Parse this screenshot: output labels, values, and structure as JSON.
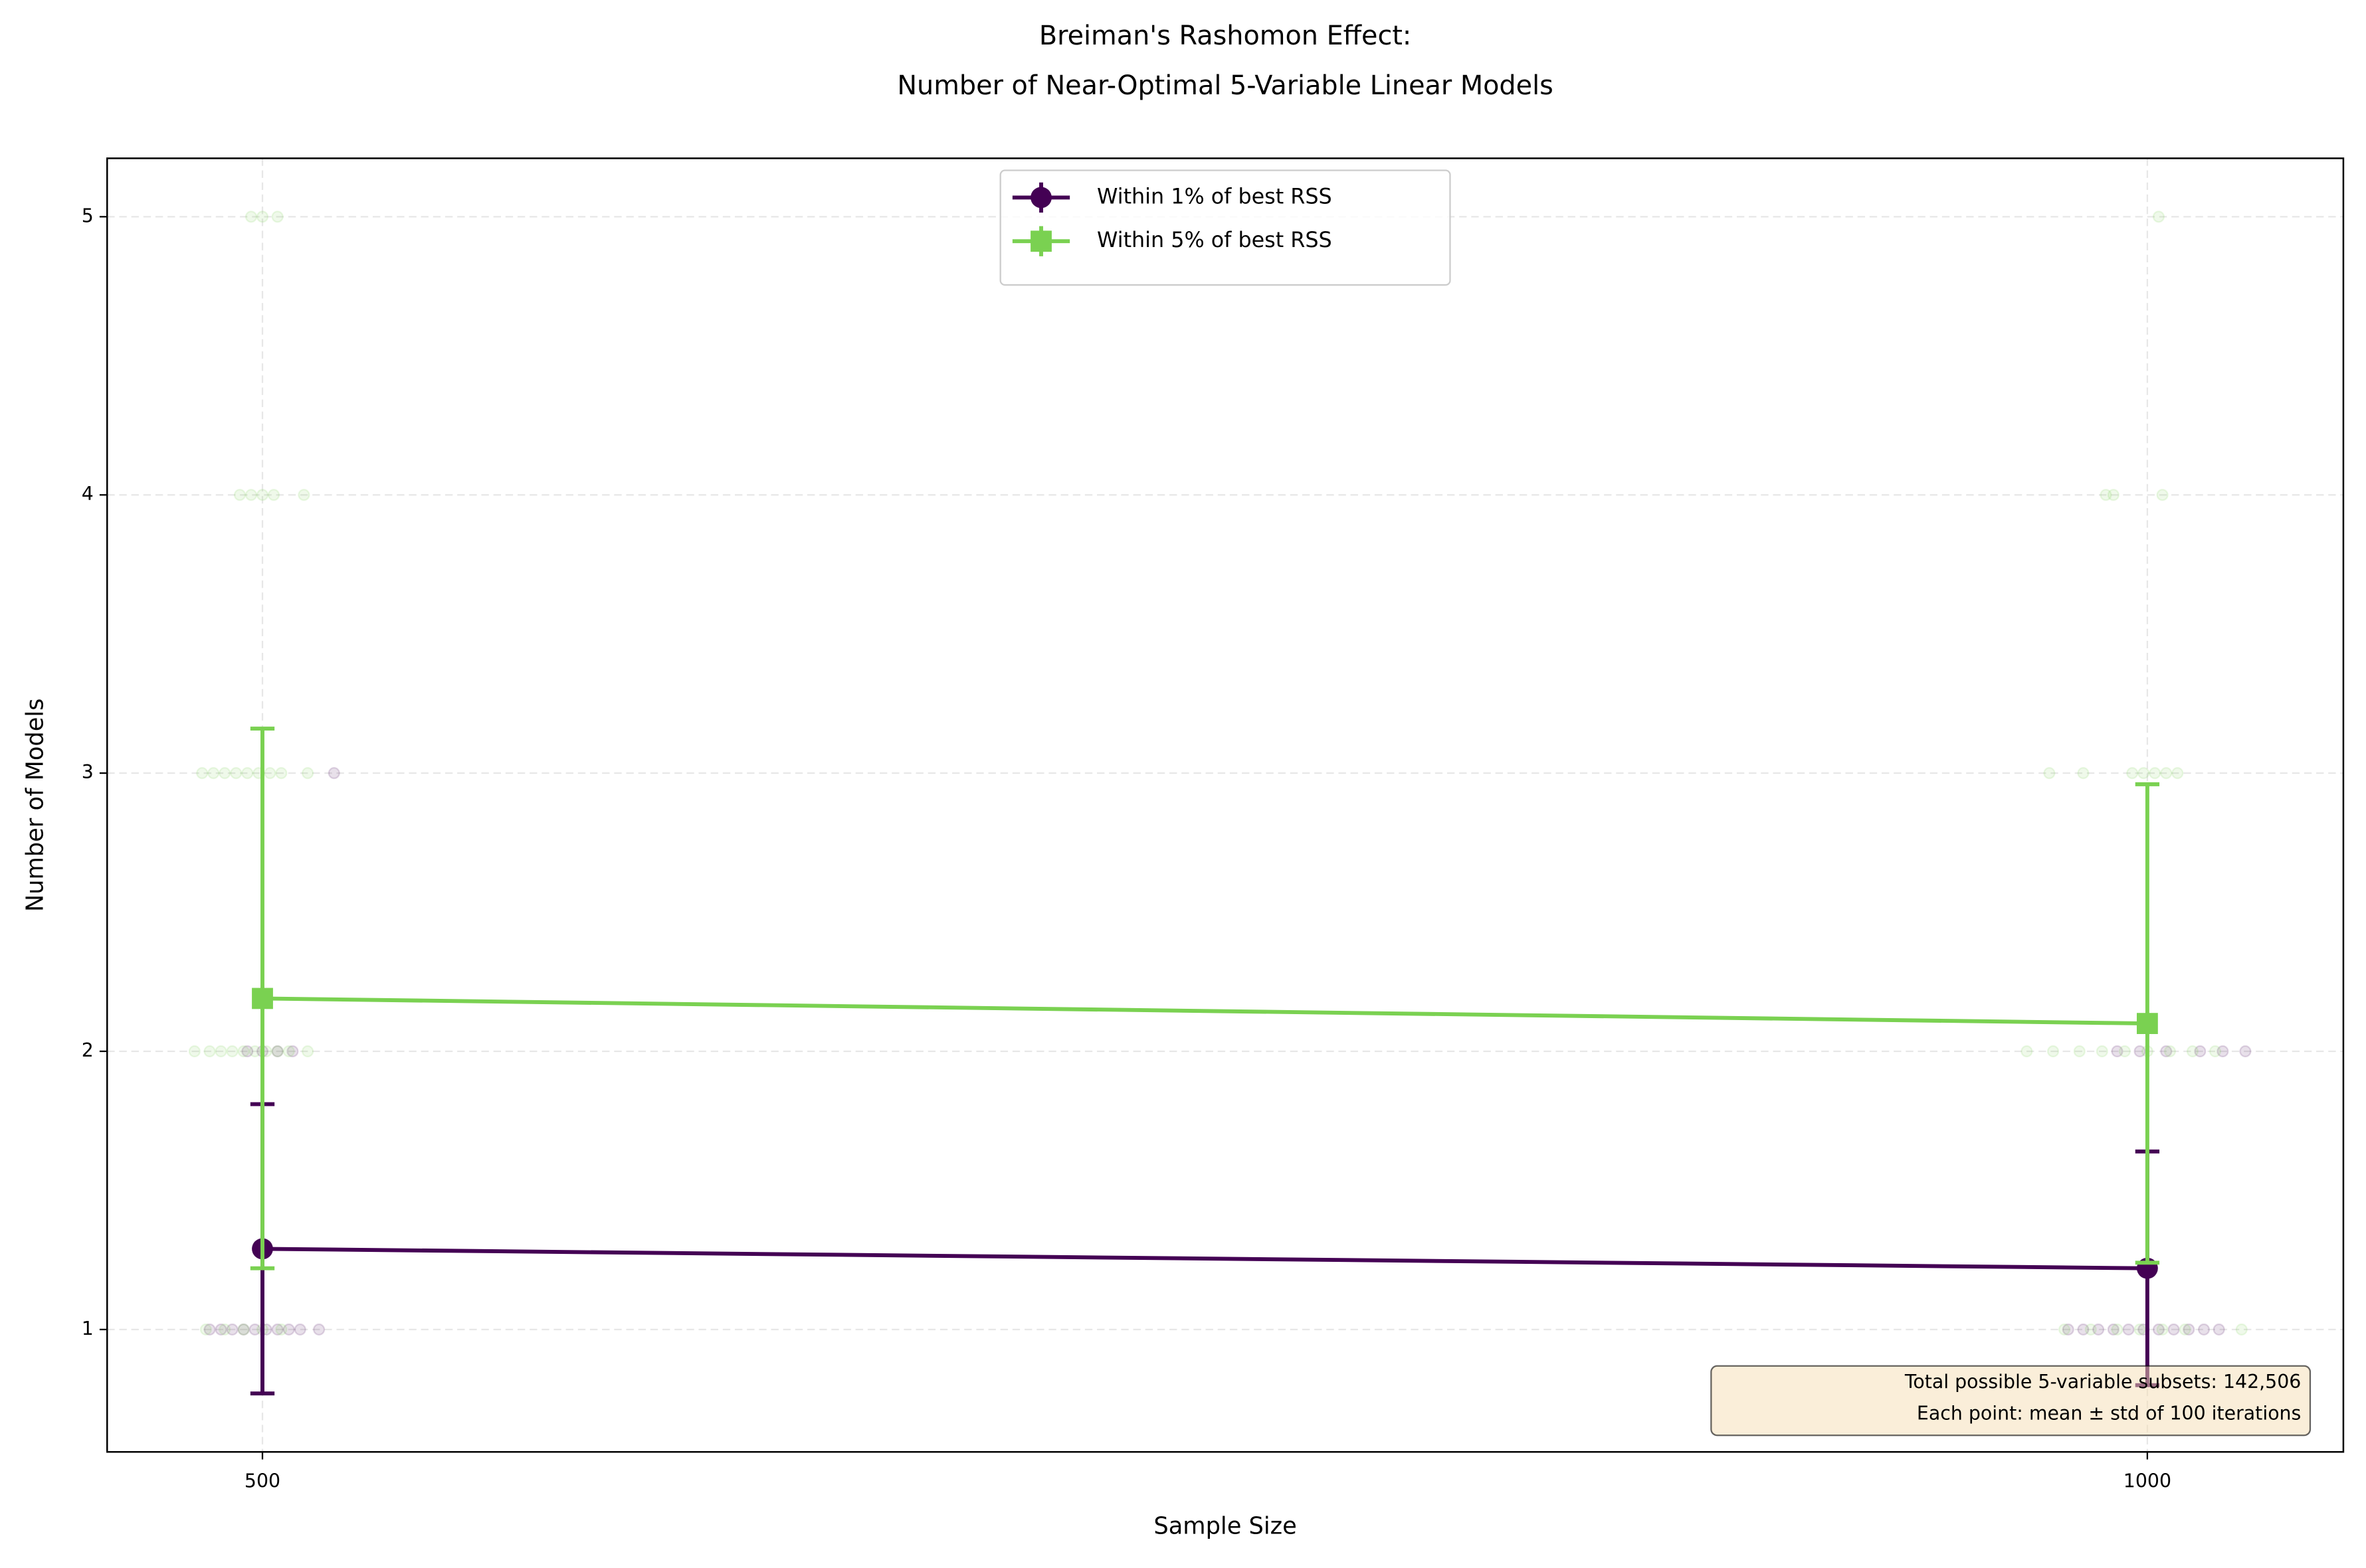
{
  "chart_data": {
    "type": "errorbar-line",
    "title": [
      "Breiman's Rashomon Effect:",
      "Number of Near-Optimal 5-Variable Linear Models"
    ],
    "xlabel": "Sample Size",
    "ylabel": "Number of Models",
    "x": [
      500,
      1000
    ],
    "series": [
      {
        "name": "Within 1% of best RSS",
        "color": "#440154",
        "marker": "circle",
        "values": [
          1.29,
          1.22
        ],
        "errors": [
          0.52,
          0.42
        ]
      },
      {
        "name": "Within 5% of best RSS",
        "color": "#7ad151",
        "marker": "square",
        "values": [
          2.19,
          2.1
        ],
        "errors": [
          0.97,
          0.86
        ]
      }
    ],
    "jitter": [
      {
        "color": "#440154",
        "x": [
          486,
          489,
          492,
          495,
          498,
          501,
          504,
          507,
          510,
          515,
          496,
          500,
          504,
          508,
          519,
          979,
          983,
          987,
          991,
          995,
          999,
          1003,
          1007,
          1011,
          1015,
          1019,
          992,
          998,
          1005,
          1014,
          1020,
          1026
        ],
        "y": [
          1,
          1,
          1,
          1,
          1,
          1,
          1,
          1,
          1,
          1,
          2,
          2,
          2,
          2,
          3,
          1,
          1,
          1,
          1,
          1,
          1,
          1,
          1,
          1,
          1,
          1,
          2,
          2,
          2,
          2,
          2,
          2
        ]
      },
      {
        "color": "#7ad151",
        "x": [
          497,
          500,
          504,
          494,
          497,
          500,
          503,
          511,
          484,
          487,
          490,
          493,
          496,
          499,
          502,
          505,
          512,
          482,
          486,
          489,
          492,
          495,
          498,
          501,
          504,
          507,
          512,
          485,
          490,
          495,
          500,
          505,
          1003,
          989,
          991,
          1004,
          974,
          983,
          996,
          999,
          1002,
          1005,
          1008,
          968,
          975,
          982,
          988,
          994,
          1000,
          1006,
          1012,
          1018,
          978,
          985,
          992,
          998,
          1004,
          1010,
          1025
        ],
        "y": [
          5,
          5,
          5,
          4,
          4,
          4,
          4,
          4,
          3,
          3,
          3,
          3,
          3,
          3,
          3,
          3,
          3,
          2,
          2,
          2,
          2,
          2,
          2,
          2,
          2,
          2,
          2,
          1,
          1,
          1,
          1,
          1,
          5,
          4,
          4,
          4,
          3,
          3,
          3,
          3,
          3,
          3,
          3,
          2,
          2,
          2,
          2,
          2,
          2,
          2,
          2,
          2,
          1,
          1,
          1,
          1,
          1,
          1,
          1
        ]
      }
    ],
    "xlim": [
      458.8,
      1052
    ],
    "ylim": [
      0.56,
      5.21
    ],
    "xticks": [
      500,
      1000
    ],
    "yticks": [
      1,
      2,
      3,
      4,
      5
    ],
    "grid": true,
    "legend": "upper center",
    "annotation": [
      "Total possible 5-variable subsets: 142,506",
      "Each point: mean ± std of 100 iterations"
    ]
  }
}
